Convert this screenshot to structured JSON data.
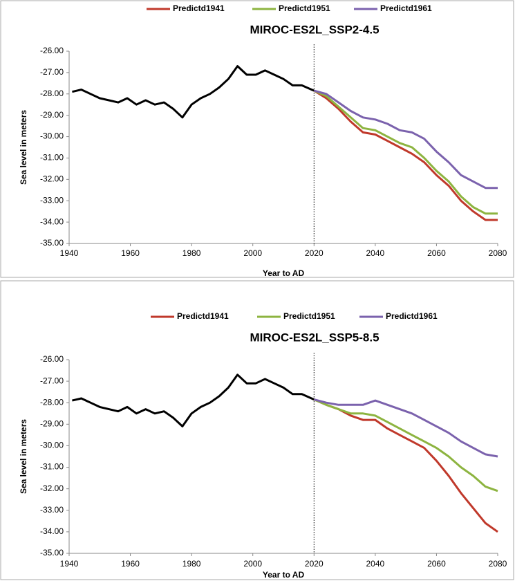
{
  "chart_data": [
    {
      "type": "line",
      "title": "MIROC-ES2L_SSP2-4.5",
      "x_label": "Year to AD",
      "y_label": "Sea level in meters",
      "xlim": [
        1940,
        2080
      ],
      "xticks": [
        1940,
        1960,
        1980,
        2000,
        2020,
        2040,
        2060,
        2080
      ],
      "ylim": [
        -35,
        -26
      ],
      "yticks": [
        {
          "value": -35,
          "label": "-35.00"
        },
        {
          "value": -34,
          "label": "-34.00"
        },
        {
          "value": -33,
          "label": "-33.00"
        },
        {
          "value": -32,
          "label": "-32.00"
        },
        {
          "value": -31,
          "label": "-31.00"
        },
        {
          "value": -30,
          "label": "-30.00"
        },
        {
          "value": -29,
          "label": "-29.00"
        },
        {
          "value": -28,
          "label": "-28.00"
        },
        {
          "value": -27,
          "label": "-27.00"
        },
        {
          "value": -26,
          "label": "-26.00"
        }
      ],
      "vline": 2020,
      "x": [
        1941,
        1944,
        1947,
        1950,
        1953,
        1956,
        1959,
        1962,
        1965,
        1968,
        1971,
        1974,
        1977,
        1980,
        1983,
        1986,
        1989,
        1992,
        1995,
        1998,
        2001,
        2004,
        2007,
        2010,
        2013,
        2016,
        2020,
        2024,
        2028,
        2032,
        2036,
        2040,
        2044,
        2048,
        2052,
        2056,
        2060,
        2064,
        2068,
        2072,
        2076,
        2080
      ],
      "series": [
        {
          "color": "#000000",
          "values": [
            -27.9,
            -27.8,
            -28.0,
            -28.2,
            -28.3,
            -28.4,
            -28.2,
            -28.5,
            -28.3,
            -28.5,
            -28.4,
            -28.7,
            -29.1,
            -28.5,
            -28.2,
            -28.0,
            -27.7,
            -27.3,
            -26.7,
            -27.1,
            -27.1,
            -26.9,
            -27.1,
            -27.3,
            -27.6,
            -27.6,
            -27.85,
            null,
            null,
            null,
            null,
            null,
            null,
            null,
            null,
            null,
            null,
            null,
            null,
            null,
            null,
            null
          ]
        },
        {
          "name": "Predictd1941",
          "color": "#c0392b",
          "values": [
            null,
            null,
            null,
            null,
            null,
            null,
            null,
            null,
            null,
            null,
            null,
            null,
            null,
            null,
            null,
            null,
            null,
            null,
            null,
            null,
            null,
            null,
            null,
            null,
            null,
            null,
            -27.85,
            -28.2,
            -28.7,
            -29.3,
            -29.8,
            -29.9,
            -30.2,
            -30.5,
            -30.8,
            -31.2,
            -31.8,
            -32.3,
            -33.0,
            -33.5,
            -33.9,
            -33.9
          ]
        },
        {
          "name": "Predictd1951",
          "color": "#8db440",
          "values": [
            null,
            null,
            null,
            null,
            null,
            null,
            null,
            null,
            null,
            null,
            null,
            null,
            null,
            null,
            null,
            null,
            null,
            null,
            null,
            null,
            null,
            null,
            null,
            null,
            null,
            null,
            -27.85,
            -28.1,
            -28.6,
            -29.1,
            -29.6,
            -29.7,
            -30.0,
            -30.3,
            -30.5,
            -31.0,
            -31.6,
            -32.1,
            -32.8,
            -33.3,
            -33.6,
            -33.6
          ]
        },
        {
          "name": "Predictd1961",
          "color": "#7b62ad",
          "values": [
            null,
            null,
            null,
            null,
            null,
            null,
            null,
            null,
            null,
            null,
            null,
            null,
            null,
            null,
            null,
            null,
            null,
            null,
            null,
            null,
            null,
            null,
            null,
            null,
            null,
            null,
            -27.85,
            -28.0,
            -28.4,
            -28.8,
            -29.1,
            -29.2,
            -29.4,
            -29.7,
            -29.8,
            -30.1,
            -30.7,
            -31.2,
            -31.8,
            -32.1,
            -32.4,
            -32.4
          ]
        }
      ]
    },
    {
      "type": "line",
      "title": "MIROC-ES2L_SSP5-8.5",
      "x_label": "Year to AD",
      "y_label": "Sea level in meters",
      "xlim": [
        1940,
        2080
      ],
      "xticks": [
        1940,
        1960,
        1980,
        2000,
        2020,
        2040,
        2060,
        2080
      ],
      "ylim": [
        -35,
        -26
      ],
      "yticks": [
        {
          "value": -35,
          "label": "-35.00"
        },
        {
          "value": -34,
          "label": "-34.00"
        },
        {
          "value": -33,
          "label": "-33.00"
        },
        {
          "value": -32,
          "label": "-32.00"
        },
        {
          "value": -31,
          "label": "-31.00"
        },
        {
          "value": -30,
          "label": "-30.00"
        },
        {
          "value": -29,
          "label": "-29.00"
        },
        {
          "value": -28,
          "label": "-28.00"
        },
        {
          "value": -27,
          "label": "-27.00"
        },
        {
          "value": -26,
          "label": "-26.00"
        }
      ],
      "vline": 2020,
      "x": [
        1941,
        1944,
        1947,
        1950,
        1953,
        1956,
        1959,
        1962,
        1965,
        1968,
        1971,
        1974,
        1977,
        1980,
        1983,
        1986,
        1989,
        1992,
        1995,
        1998,
        2001,
        2004,
        2007,
        2010,
        2013,
        2016,
        2020,
        2024,
        2028,
        2032,
        2036,
        2040,
        2044,
        2048,
        2052,
        2056,
        2060,
        2064,
        2068,
        2072,
        2076,
        2080
      ],
      "series": [
        {
          "color": "#000000",
          "values": [
            -27.9,
            -27.8,
            -28.0,
            -28.2,
            -28.3,
            -28.4,
            -28.2,
            -28.5,
            -28.3,
            -28.5,
            -28.4,
            -28.7,
            -29.1,
            -28.5,
            -28.2,
            -28.0,
            -27.7,
            -27.3,
            -26.7,
            -27.1,
            -27.1,
            -26.9,
            -27.1,
            -27.3,
            -27.6,
            -27.6,
            -27.85,
            null,
            null,
            null,
            null,
            null,
            null,
            null,
            null,
            null,
            null,
            null,
            null,
            null,
            null,
            null
          ]
        },
        {
          "name": "Predictd1941",
          "color": "#c0392b",
          "values": [
            null,
            null,
            null,
            null,
            null,
            null,
            null,
            null,
            null,
            null,
            null,
            null,
            null,
            null,
            null,
            null,
            null,
            null,
            null,
            null,
            null,
            null,
            null,
            null,
            null,
            null,
            -27.85,
            -28.1,
            -28.3,
            -28.6,
            -28.8,
            -28.8,
            -29.2,
            -29.5,
            -29.8,
            -30.1,
            -30.7,
            -31.4,
            -32.2,
            -32.9,
            -33.6,
            -34.0
          ]
        },
        {
          "name": "Predictd1951",
          "color": "#8db440",
          "values": [
            null,
            null,
            null,
            null,
            null,
            null,
            null,
            null,
            null,
            null,
            null,
            null,
            null,
            null,
            null,
            null,
            null,
            null,
            null,
            null,
            null,
            null,
            null,
            null,
            null,
            null,
            -27.85,
            -28.1,
            -28.3,
            -28.5,
            -28.5,
            -28.6,
            -28.9,
            -29.2,
            -29.5,
            -29.8,
            -30.1,
            -30.5,
            -31.0,
            -31.4,
            -31.9,
            -32.1
          ]
        },
        {
          "name": "Predictd1961",
          "color": "#7b62ad",
          "values": [
            null,
            null,
            null,
            null,
            null,
            null,
            null,
            null,
            null,
            null,
            null,
            null,
            null,
            null,
            null,
            null,
            null,
            null,
            null,
            null,
            null,
            null,
            null,
            null,
            null,
            null,
            -27.85,
            -28.0,
            -28.1,
            -28.1,
            -28.1,
            -27.9,
            -28.1,
            -28.3,
            -28.5,
            -28.8,
            -29.1,
            -29.4,
            -29.8,
            -30.1,
            -30.4,
            -30.5
          ]
        }
      ]
    }
  ]
}
